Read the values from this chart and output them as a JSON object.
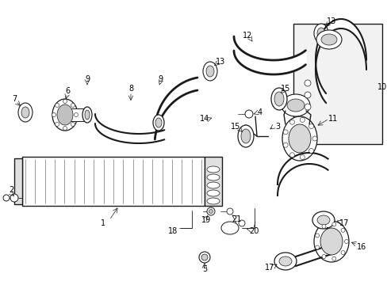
{
  "bg_color": "#ffffff",
  "lc": "#1a1a1a",
  "gray": "#888888",
  "lightgray": "#cccccc",
  "fig_width": 4.89,
  "fig_height": 3.6,
  "dpi": 100
}
